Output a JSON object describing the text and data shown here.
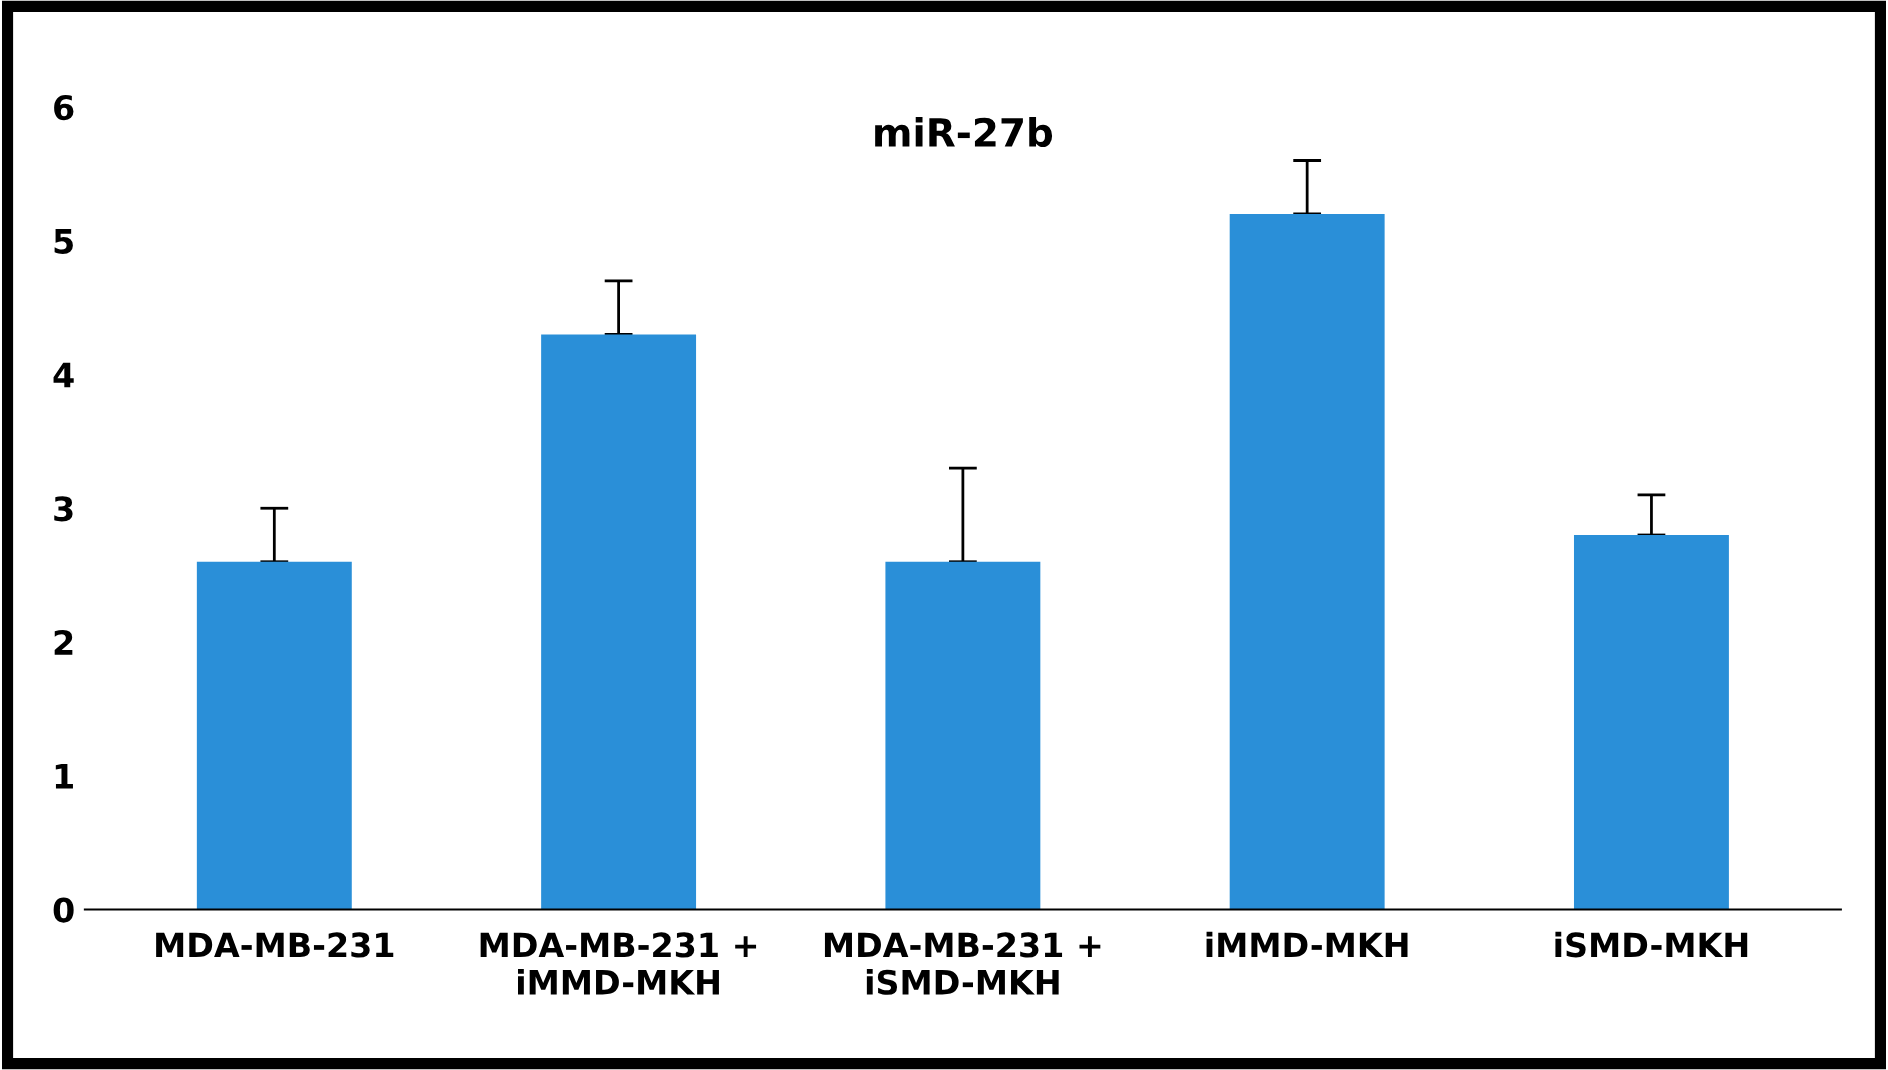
{
  "chart_data": {
    "type": "bar",
    "title": "miR-27b",
    "categories": [
      "MDA-MB-231",
      "MDA-MB-231 +\niMMD-MKH",
      "MDA-MB-231 +\niSMD-MKH",
      "iMMD-MKH",
      "iSMD-MKH"
    ],
    "values": [
      2.6,
      4.3,
      2.6,
      5.2,
      2.8
    ],
    "errors": [
      [
        2.6,
        3.0
      ],
      [
        4.3,
        4.7
      ],
      [
        2.6,
        3.3
      ],
      [
        5.2,
        5.6
      ],
      [
        2.8,
        3.1
      ]
    ],
    "color": "#2a8fd8",
    "ylim": [
      0,
      6
    ],
    "yticks": [
      0,
      1,
      2,
      3,
      4,
      5,
      6
    ],
    "grid": false,
    "legend": false
  }
}
